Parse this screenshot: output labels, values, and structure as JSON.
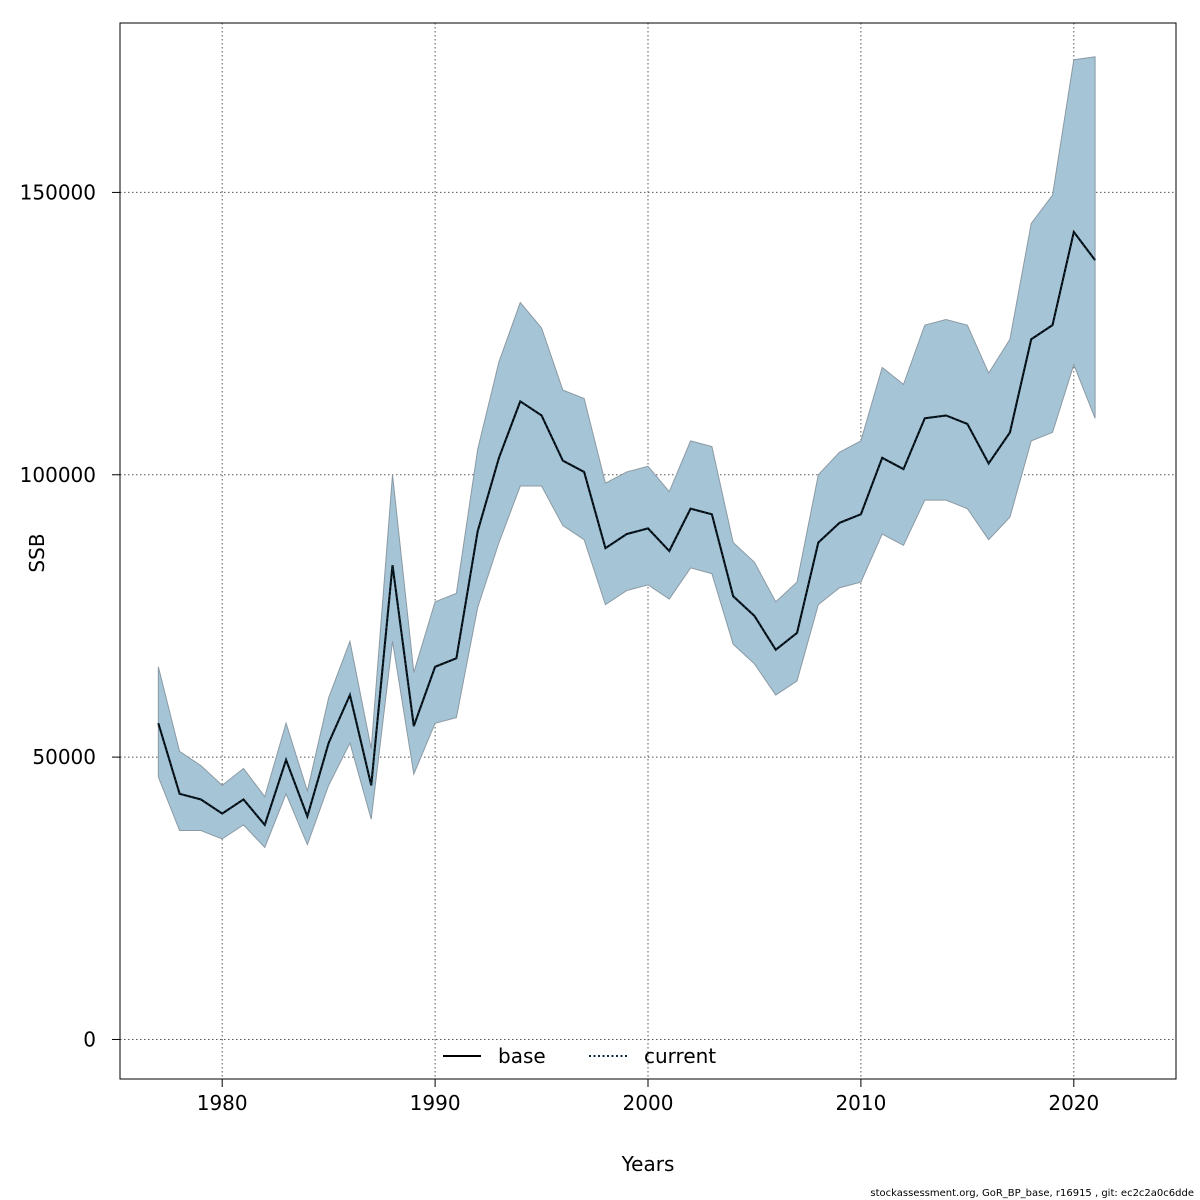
{
  "chart_data": {
    "type": "line",
    "title": "",
    "xlabel": "Years",
    "ylabel": "SSB",
    "xlim": [
      1975.2,
      2024.8
    ],
    "ylim": [
      -7000,
      180000
    ],
    "x_ticks": [
      1980,
      1990,
      2000,
      2010,
      2020
    ],
    "y_ticks": [
      0,
      50000,
      100000,
      150000
    ],
    "x_tick_labels": [
      "1980",
      "1990",
      "2000",
      "2010",
      "2020"
    ],
    "y_tick_labels": [
      "0",
      "50000",
      "100000",
      "150000"
    ],
    "grid": true,
    "legend": {
      "placement": "bottom-center",
      "entries": [
        {
          "name": "base",
          "style": "solid",
          "color": "#000000"
        },
        {
          "name": "current",
          "style": "dotted",
          "color": "#000000"
        }
      ]
    },
    "band_color": "#a5c4d6",
    "band_edge_color": "#8b9aa4",
    "x": [
      1977,
      1978,
      1979,
      1980,
      1981,
      1982,
      1983,
      1984,
      1985,
      1986,
      1987,
      1988,
      1989,
      1990,
      1991,
      1992,
      1993,
      1994,
      1995,
      1996,
      1997,
      1998,
      1999,
      2000,
      2001,
      2002,
      2003,
      2004,
      2005,
      2006,
      2007,
      2008,
      2009,
      2010,
      2011,
      2012,
      2013,
      2014,
      2015,
      2016,
      2017,
      2018,
      2019,
      2020,
      2021
    ],
    "series": [
      {
        "name": "base",
        "style": "solid",
        "values": [
          56000,
          43500,
          42500,
          40000,
          42500,
          38000,
          49500,
          39500,
          52500,
          61000,
          45000,
          84000,
          55500,
          66000,
          67500,
          90000,
          103000,
          113000,
          110500,
          102500,
          100500,
          87000,
          89500,
          90500,
          86500,
          94000,
          93000,
          78500,
          75000,
          69000,
          72000,
          88000,
          91500,
          93000,
          103000,
          101000,
          110000,
          110500,
          109000,
          102000,
          107500,
          124000,
          126500,
          143000,
          138000
        ]
      },
      {
        "name": "current",
        "style": "dotted",
        "values": [
          56000,
          43500,
          42500,
          40000,
          42500,
          38000,
          49500,
          39500,
          52500,
          61000,
          45000,
          84000,
          55500,
          66000,
          67500,
          90000,
          103000,
          113000,
          110500,
          102500,
          100500,
          87000,
          89500,
          90500,
          86500,
          94000,
          93000,
          78500,
          75000,
          69000,
          72000,
          88000,
          91500,
          93000,
          103000,
          101000,
          110000,
          110500,
          109000,
          102000,
          107500,
          124000,
          126500,
          143000,
          138000
        ]
      }
    ],
    "band": {
      "upper": [
        66000,
        51000,
        48500,
        45000,
        48000,
        43000,
        56000,
        44000,
        60500,
        70500,
        51500,
        100000,
        65000,
        77500,
        79000,
        104500,
        120000,
        130500,
        126000,
        115000,
        113500,
        98500,
        100500,
        101500,
        97000,
        106000,
        105000,
        88000,
        84500,
        77500,
        81000,
        100000,
        104000,
        106000,
        119000,
        116000,
        126500,
        127500,
        126500,
        118000,
        124000,
        144500,
        149500,
        173500,
        174000
      ],
      "lower": [
        46500,
        37000,
        37000,
        35500,
        38000,
        34000,
        43500,
        34500,
        45000,
        52500,
        39000,
        70500,
        47000,
        56000,
        57000,
        76500,
        88000,
        98000,
        98000,
        91000,
        88500,
        77000,
        79500,
        80500,
        78000,
        83500,
        82500,
        70000,
        66500,
        61000,
        63500,
        77000,
        80000,
        81000,
        89500,
        87500,
        95500,
        95500,
        94000,
        88500,
        92500,
        106000,
        107500,
        119500,
        110000
      ]
    }
  },
  "footer": {
    "text": "stockassessment.org, GoR_BP_base, r16915 , git: ec2c2a0c6dde"
  }
}
